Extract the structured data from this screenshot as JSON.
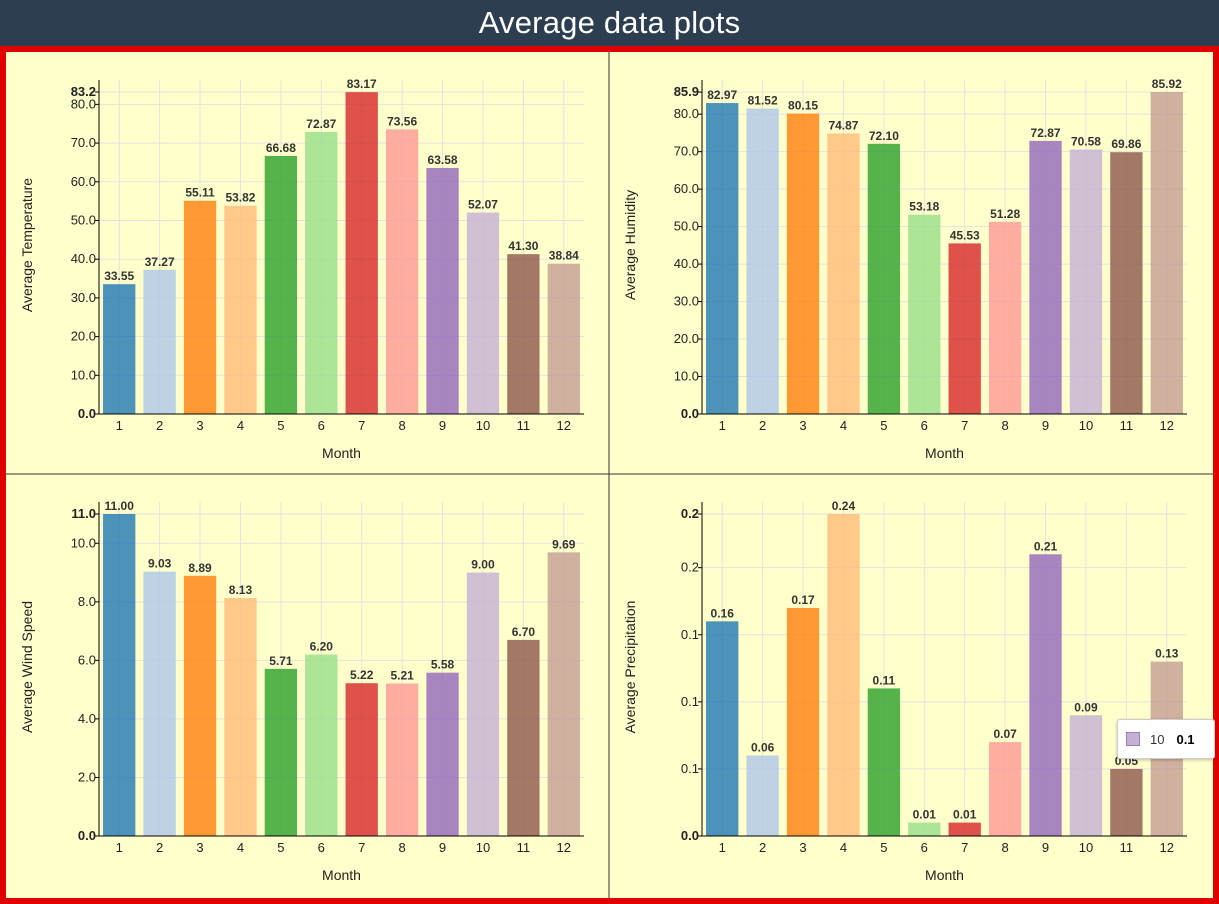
{
  "page": {
    "title": "Average data plots"
  },
  "colors": {
    "header_bg": "#2c3e50",
    "frame_border": "#e00000",
    "plot_bg": "#ffffcc",
    "bars": [
      "#1f77b4",
      "#aec7e8",
      "#ff7f0e",
      "#ffbb78",
      "#2ca02c",
      "#98df8a",
      "#d62728",
      "#ff9896",
      "#9467bd",
      "#c5b0d5",
      "#8c564b",
      "#c49c94"
    ]
  },
  "tooltip": {
    "key": "10",
    "value": "0.1",
    "color": "#c5b0d5"
  },
  "chart_data": [
    {
      "type": "bar",
      "title": "",
      "xlabel": "Month",
      "ylabel": "Average Temperature",
      "categories": [
        "1",
        "2",
        "3",
        "4",
        "5",
        "6",
        "7",
        "8",
        "9",
        "10",
        "11",
        "12"
      ],
      "values": [
        33.55,
        37.27,
        55.11,
        53.82,
        66.68,
        72.87,
        83.17,
        73.56,
        63.58,
        52.07,
        41.3,
        38.84
      ],
      "value_labels": [
        "33.55",
        "37.27",
        "55.11",
        "53.82",
        "66.68",
        "72.87",
        "83.17",
        "73.56",
        "63.58",
        "52.07",
        "41.30",
        "38.84"
      ],
      "yticks": [
        {
          "v": 0,
          "label": "0.0",
          "bold": true
        },
        {
          "v": 10,
          "label": "10.0"
        },
        {
          "v": 20,
          "label": "20.0"
        },
        {
          "v": 30,
          "label": "30.0"
        },
        {
          "v": 40,
          "label": "40.0"
        },
        {
          "v": 50,
          "label": "50.0"
        },
        {
          "v": 60,
          "label": "60.0"
        },
        {
          "v": 70,
          "label": "70.0"
        },
        {
          "v": 80,
          "label": "80.0"
        },
        {
          "v": 83.2,
          "label": "83.2",
          "bold": true
        }
      ],
      "ylim": [
        0,
        83.2
      ],
      "grid": true
    },
    {
      "type": "bar",
      "title": "",
      "xlabel": "Month",
      "ylabel": "Average Humidity",
      "categories": [
        "1",
        "2",
        "3",
        "4",
        "5",
        "6",
        "7",
        "8",
        "9",
        "10",
        "11",
        "12"
      ],
      "values": [
        82.97,
        81.52,
        80.15,
        74.87,
        72.1,
        53.18,
        45.53,
        51.28,
        72.87,
        70.58,
        69.86,
        85.92
      ],
      "value_labels": [
        "82.97",
        "81.52",
        "80.15",
        "74.87",
        "72.10",
        "53.18",
        "45.53",
        "51.28",
        "72.87",
        "70.58",
        "69.86",
        "85.92"
      ],
      "yticks": [
        {
          "v": 0,
          "label": "0.0",
          "bold": true
        },
        {
          "v": 10,
          "label": "10.0"
        },
        {
          "v": 20,
          "label": "20.0"
        },
        {
          "v": 30,
          "label": "30.0"
        },
        {
          "v": 40,
          "label": "40.0"
        },
        {
          "v": 50,
          "label": "50.0"
        },
        {
          "v": 60,
          "label": "60.0"
        },
        {
          "v": 70,
          "label": "70.0"
        },
        {
          "v": 80,
          "label": "80.0"
        },
        {
          "v": 85.9,
          "label": "85.9",
          "bold": true
        }
      ],
      "ylim": [
        0,
        85.92
      ],
      "grid": true
    },
    {
      "type": "bar",
      "title": "",
      "xlabel": "Month",
      "ylabel": "Average Wind Speed",
      "categories": [
        "1",
        "2",
        "3",
        "4",
        "5",
        "6",
        "7",
        "8",
        "9",
        "10",
        "11",
        "12"
      ],
      "values": [
        11.0,
        9.03,
        8.89,
        8.13,
        5.71,
        6.2,
        5.22,
        5.21,
        5.58,
        9.0,
        6.7,
        9.69
      ],
      "value_labels": [
        "11.00",
        "9.03",
        "8.89",
        "8.13",
        "5.71",
        "6.20",
        "5.22",
        "5.21",
        "5.58",
        "9.00",
        "6.70",
        "9.69"
      ],
      "yticks": [
        {
          "v": 0,
          "label": "0.0",
          "bold": true
        },
        {
          "v": 2,
          "label": "2.0"
        },
        {
          "v": 4,
          "label": "4.0"
        },
        {
          "v": 6,
          "label": "6.0"
        },
        {
          "v": 8,
          "label": "8.0"
        },
        {
          "v": 10,
          "label": "10.0"
        },
        {
          "v": 11,
          "label": "11.0",
          "bold": true
        }
      ],
      "ylim": [
        0,
        11.0
      ],
      "grid": true
    },
    {
      "type": "bar",
      "title": "",
      "xlabel": "Month",
      "ylabel": "Average Precipitation",
      "categories": [
        "1",
        "2",
        "3",
        "4",
        "5",
        "6",
        "7",
        "8",
        "9",
        "10",
        "11",
        "12"
      ],
      "values": [
        0.16,
        0.06,
        0.17,
        0.24,
        0.11,
        0.01,
        0.01,
        0.07,
        0.21,
        0.09,
        0.05,
        0.13
      ],
      "value_labels": [
        "0.16",
        "0.06",
        "0.17",
        "0.24",
        "0.11",
        "0.01",
        "0.01",
        "0.07",
        "0.21",
        "0.09",
        "0.05",
        "0.13"
      ],
      "yticks": [
        {
          "v": 0,
          "label": "0.0",
          "bold": true
        },
        {
          "v": 0.05,
          "label": "0.1"
        },
        {
          "v": 0.1,
          "label": "0.1"
        },
        {
          "v": 0.15,
          "label": "0.1"
        },
        {
          "v": 0.2,
          "label": "0.2"
        },
        {
          "v": 0.24,
          "label": "0.2",
          "bold": true
        }
      ],
      "ylim": [
        0,
        0.24
      ],
      "grid": true
    }
  ]
}
